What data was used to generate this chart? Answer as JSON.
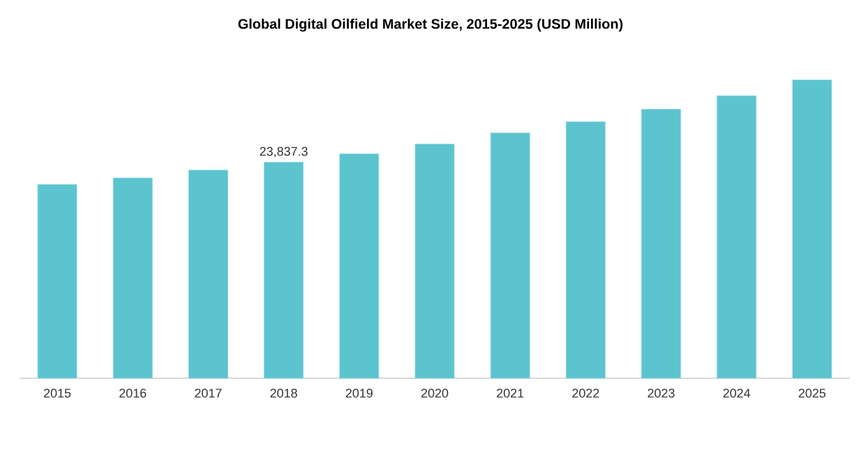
{
  "chart_data": {
    "type": "bar",
    "title": "Global Digital Oilfield Market Size, 2015-2025 (USD Million)",
    "categories": [
      "2015",
      "2016",
      "2017",
      "2018",
      "2019",
      "2020",
      "2021",
      "2022",
      "2023",
      "2024",
      "2025"
    ],
    "values": [
      21380,
      22100,
      22960,
      23837.3,
      24760,
      25840,
      27070,
      28300,
      29680,
      31170,
      32910
    ],
    "value_labels": [
      null,
      null,
      null,
      "23,837.3",
      null,
      null,
      null,
      null,
      null,
      null,
      null
    ],
    "color": "#5bc4cf",
    "tick_labels": "x"
  }
}
